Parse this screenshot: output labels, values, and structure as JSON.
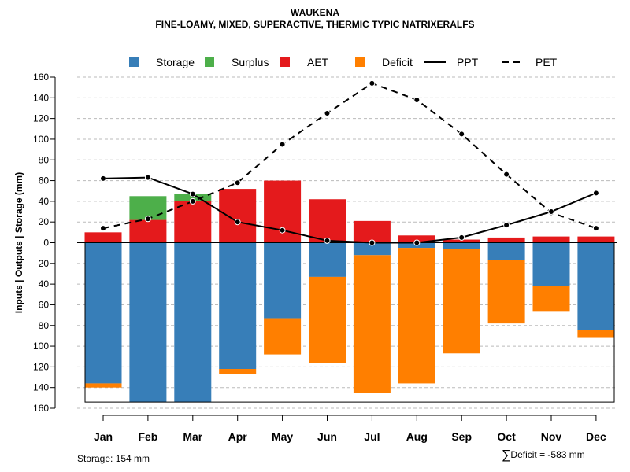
{
  "header": {
    "title": "WAUKENA",
    "subtitle": "FINE-LOAMY, MIXED, SUPERACTIVE, THERMIC TYPIC NATRIXERALFS"
  },
  "footer": {
    "storage_note": "Storage: 154 mm",
    "deficit_symbol": "∑",
    "deficit_note": "Deficit = -583 mm"
  },
  "chart_data": {
    "type": "bar",
    "ylabel": "Inputs | Outputs | Storage    (mm)",
    "ylim": [
      -160,
      160
    ],
    "yticks": [
      160,
      140,
      120,
      100,
      80,
      60,
      40,
      20,
      0,
      -20,
      -40,
      -60,
      -80,
      -100,
      -120,
      -140,
      -160
    ],
    "ytick_labels": [
      "160",
      "140",
      "120",
      "100",
      "80",
      "60",
      "40",
      "20",
      "0",
      "20",
      "40",
      "60",
      "80",
      "100",
      "120",
      "140",
      "160"
    ],
    "grid": true,
    "storage_capacity": -154,
    "categories": [
      "Jan",
      "Feb",
      "Mar",
      "Apr",
      "May",
      "Jun",
      "Jul",
      "Aug",
      "Sep",
      "Oct",
      "Nov",
      "Dec"
    ],
    "colors": {
      "storage": "#377eb8",
      "surplus": "#4daf4a",
      "aet": "#e41a1c",
      "deficit": "#ff7f00",
      "line": "#000000",
      "grid": "#bbbbbb"
    },
    "legend": [
      {
        "key": "storage",
        "label": "Storage",
        "kind": "box"
      },
      {
        "key": "surplus",
        "label": "Surplus",
        "kind": "box"
      },
      {
        "key": "aet",
        "label": "AET",
        "kind": "box"
      },
      {
        "key": "deficit",
        "label": "Deficit",
        "kind": "box"
      },
      {
        "key": "ppt",
        "label": "PPT",
        "kind": "solid"
      },
      {
        "key": "pet",
        "label": "PET",
        "kind": "dashed"
      }
    ],
    "series": [
      {
        "name": "Storage",
        "key": "storage",
        "values": [
          -136,
          -154,
          -154,
          -122,
          -73,
          -33,
          -12,
          -5,
          -6,
          -17,
          -42,
          -84
        ]
      },
      {
        "name": "Deficit",
        "key": "deficit",
        "values": [
          -4,
          0,
          0,
          -5,
          -35,
          -83,
          -133,
          -131,
          -101,
          -61,
          -24,
          -8
        ]
      },
      {
        "name": "AET",
        "key": "aet",
        "values": [
          10,
          22,
          40,
          52,
          60,
          42,
          21,
          7,
          3,
          5,
          6,
          6
        ]
      },
      {
        "name": "Surplus",
        "key": "surplus",
        "values": [
          0,
          23,
          7,
          0,
          0,
          0,
          0,
          0,
          0,
          0,
          0,
          0
        ]
      },
      {
        "name": "PPT",
        "key": "ppt",
        "values": [
          62,
          63,
          47,
          20,
          12,
          2,
          0,
          0,
          5,
          17,
          30,
          48
        ]
      },
      {
        "name": "PET",
        "key": "pet",
        "values": [
          14,
          23,
          40,
          58,
          95,
          125,
          154,
          138,
          105,
          66,
          29,
          14
        ]
      }
    ]
  }
}
